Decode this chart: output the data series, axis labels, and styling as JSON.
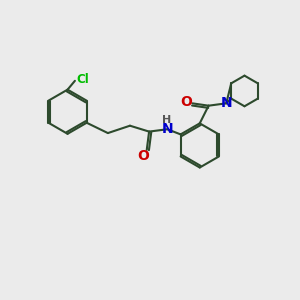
{
  "background_color": "#ebebeb",
  "bond_color": "#2d4a2d",
  "atom_colors": {
    "Cl": "#00bb00",
    "O": "#cc0000",
    "N": "#0000cc",
    "H": "#555555",
    "C": "#2d4a2d"
  },
  "figsize": [
    3.0,
    3.0
  ],
  "dpi": 100,
  "xlim": [
    0,
    10
  ],
  "ylim": [
    0,
    10
  ]
}
